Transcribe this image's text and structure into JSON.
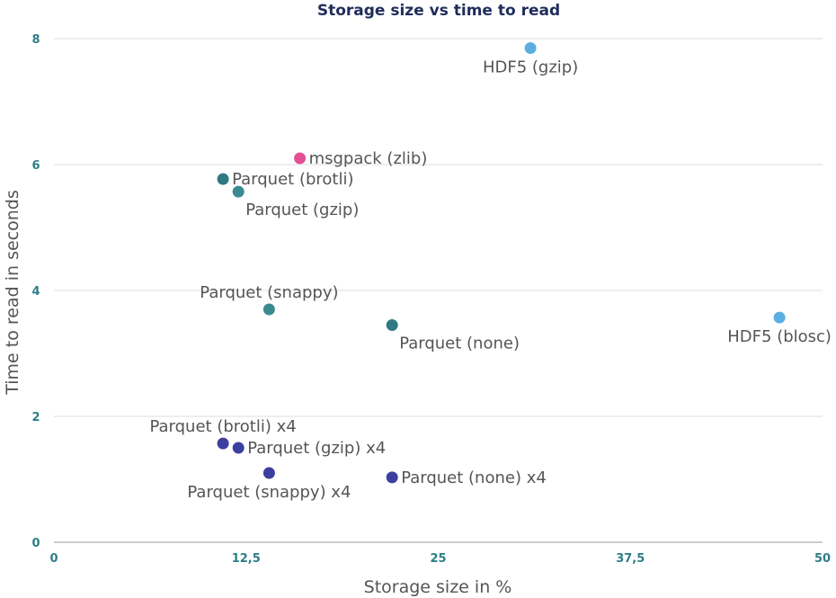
{
  "chart_data": {
    "type": "scatter",
    "title": "Storage size vs time to read",
    "xlabel": "Storage size in %",
    "ylabel": "Time to read in seconds",
    "xlim": [
      0,
      50
    ],
    "ylim": [
      0,
      8
    ],
    "x_ticks": [
      {
        "value": 0,
        "label": "0"
      },
      {
        "value": 12.5,
        "label": "12,5"
      },
      {
        "value": 25,
        "label": "25"
      },
      {
        "value": 37.5,
        "label": "37,5"
      },
      {
        "value": 50,
        "label": "50"
      }
    ],
    "y_ticks": [
      {
        "value": 0,
        "label": "0"
      },
      {
        "value": 2,
        "label": "2"
      },
      {
        "value": 4,
        "label": "4"
      },
      {
        "value": 6,
        "label": "6"
      },
      {
        "value": 8,
        "label": "8"
      }
    ],
    "grid": true,
    "points": [
      {
        "label": "HDF5 (gzip)",
        "x": 31.0,
        "y": 7.85,
        "color": "#5aafe0",
        "label_pos": "below"
      },
      {
        "label": "HDF5 (blosc)",
        "x": 47.2,
        "y": 3.57,
        "color": "#5aafe0",
        "label_pos": "below"
      },
      {
        "label": "msgpack (zlib)",
        "x": 16.0,
        "y": 6.1,
        "color": "#e24f96",
        "label_pos": "right"
      },
      {
        "label": "Parquet (brotli)",
        "x": 11.0,
        "y": 5.77,
        "color": "#2f7a82",
        "label_pos": "right"
      },
      {
        "label": "Parquet (gzip)",
        "x": 12.0,
        "y": 5.57,
        "color": "#3b8a91",
        "label_pos": "below-right"
      },
      {
        "label": "Parquet (snappy)",
        "x": 14.0,
        "y": 3.7,
        "color": "#3b8a91",
        "label_pos": "above"
      },
      {
        "label": "Parquet (none)",
        "x": 22.0,
        "y": 3.45,
        "color": "#2f7a82",
        "label_pos": "below-right"
      },
      {
        "label": "Parquet (brotli) x4",
        "x": 11.0,
        "y": 1.57,
        "color": "#3d3fa0",
        "label_pos": "above"
      },
      {
        "label": "Parquet (gzip) x4",
        "x": 12.0,
        "y": 1.5,
        "color": "#3d3fa0",
        "label_pos": "right"
      },
      {
        "label": "Parquet (snappy) x4",
        "x": 14.0,
        "y": 1.1,
        "color": "#3d3fa0",
        "label_pos": "below"
      },
      {
        "label": "Parquet (none) x4",
        "x": 22.0,
        "y": 1.03,
        "color": "#3d3fa0",
        "label_pos": "right"
      }
    ]
  }
}
